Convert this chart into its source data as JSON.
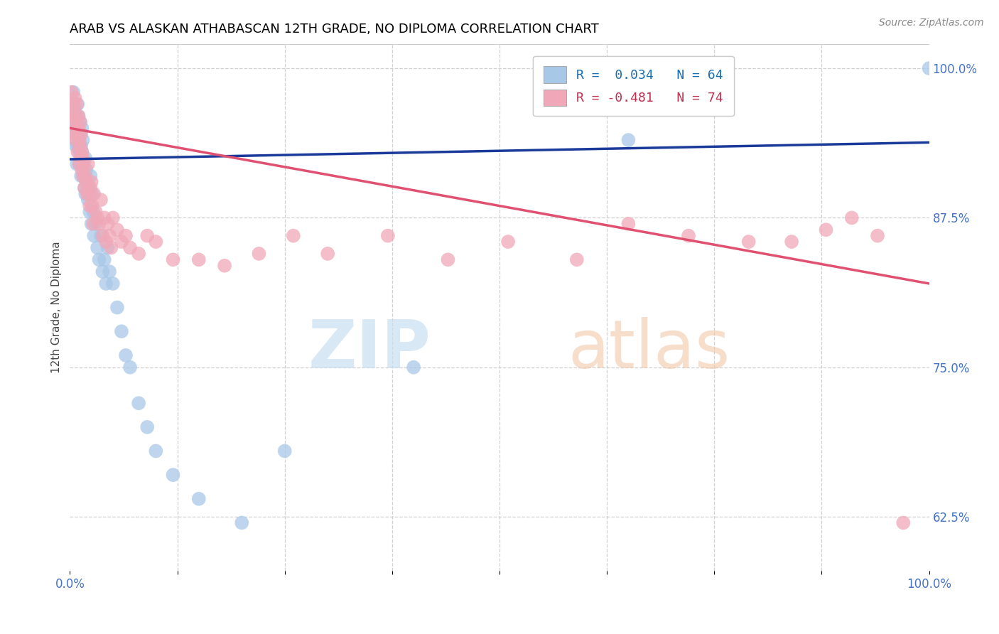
{
  "title": "ARAB VS ALASKAN ATHABASCAN 12TH GRADE, NO DIPLOMA CORRELATION CHART",
  "source": "Source: ZipAtlas.com",
  "ylabel": "12th Grade, No Diploma",
  "arab_color": "#a8c8e8",
  "athabascan_color": "#f0a8b8",
  "arab_line_color": "#1a3a9a",
  "athabascan_line_color": "#e05070",
  "arab_R": 0.034,
  "arab_N": 64,
  "athabascan_R": -0.481,
  "athabascan_N": 74,
  "arab_x": [
    0.002,
    0.003,
    0.004,
    0.004,
    0.005,
    0.005,
    0.006,
    0.006,
    0.007,
    0.007,
    0.008,
    0.008,
    0.009,
    0.009,
    0.01,
    0.01,
    0.011,
    0.011,
    0.012,
    0.012,
    0.013,
    0.013,
    0.014,
    0.014,
    0.015,
    0.015,
    0.016,
    0.017,
    0.018,
    0.018,
    0.019,
    0.02,
    0.021,
    0.022,
    0.023,
    0.024,
    0.025,
    0.026,
    0.027,
    0.028,
    0.03,
    0.032,
    0.034,
    0.036,
    0.038,
    0.04,
    0.042,
    0.044,
    0.046,
    0.05,
    0.055,
    0.06,
    0.065,
    0.07,
    0.08,
    0.09,
    0.1,
    0.12,
    0.15,
    0.2,
    0.25,
    0.4,
    0.65,
    1.0
  ],
  "arab_y": [
    0.96,
    0.97,
    0.945,
    0.98,
    0.965,
    0.95,
    0.955,
    0.94,
    0.935,
    0.96,
    0.945,
    0.92,
    0.97,
    0.935,
    0.96,
    0.94,
    0.93,
    0.92,
    0.945,
    0.955,
    0.935,
    0.91,
    0.95,
    0.93,
    0.94,
    0.92,
    0.91,
    0.9,
    0.925,
    0.895,
    0.915,
    0.905,
    0.89,
    0.9,
    0.88,
    0.91,
    0.87,
    0.895,
    0.88,
    0.86,
    0.87,
    0.85,
    0.84,
    0.86,
    0.83,
    0.84,
    0.82,
    0.85,
    0.83,
    0.82,
    0.8,
    0.78,
    0.76,
    0.75,
    0.72,
    0.7,
    0.68,
    0.66,
    0.64,
    0.62,
    0.68,
    0.75,
    0.94,
    1.0
  ],
  "athabascan_x": [
    0.002,
    0.003,
    0.004,
    0.005,
    0.005,
    0.006,
    0.006,
    0.007,
    0.007,
    0.008,
    0.008,
    0.009,
    0.009,
    0.01,
    0.01,
    0.011,
    0.011,
    0.012,
    0.012,
    0.013,
    0.013,
    0.014,
    0.014,
    0.015,
    0.015,
    0.016,
    0.017,
    0.018,
    0.019,
    0.02,
    0.021,
    0.022,
    0.023,
    0.024,
    0.025,
    0.026,
    0.027,
    0.028,
    0.03,
    0.032,
    0.034,
    0.036,
    0.038,
    0.04,
    0.042,
    0.044,
    0.046,
    0.048,
    0.05,
    0.055,
    0.06,
    0.065,
    0.07,
    0.08,
    0.09,
    0.1,
    0.12,
    0.15,
    0.18,
    0.22,
    0.26,
    0.3,
    0.37,
    0.44,
    0.51,
    0.59,
    0.65,
    0.72,
    0.79,
    0.84,
    0.88,
    0.91,
    0.94,
    0.97
  ],
  "athabascan_y": [
    0.98,
    0.965,
    0.97,
    0.96,
    0.945,
    0.975,
    0.955,
    0.96,
    0.94,
    0.95,
    0.97,
    0.945,
    0.93,
    0.96,
    0.95,
    0.94,
    0.92,
    0.955,
    0.935,
    0.945,
    0.925,
    0.915,
    0.93,
    0.925,
    0.91,
    0.92,
    0.9,
    0.91,
    0.905,
    0.895,
    0.92,
    0.895,
    0.885,
    0.9,
    0.905,
    0.885,
    0.87,
    0.895,
    0.88,
    0.875,
    0.87,
    0.89,
    0.86,
    0.875,
    0.855,
    0.87,
    0.86,
    0.85,
    0.875,
    0.865,
    0.855,
    0.86,
    0.85,
    0.845,
    0.86,
    0.855,
    0.84,
    0.84,
    0.835,
    0.845,
    0.86,
    0.845,
    0.86,
    0.84,
    0.855,
    0.84,
    0.87,
    0.86,
    0.855,
    0.855,
    0.865,
    0.875,
    0.86,
    0.62
  ],
  "arab_line": [
    0.924,
    0.938
  ],
  "athabascan_line": [
    0.95,
    0.82
  ],
  "xlim": [
    0.0,
    1.0
  ],
  "ylim": [
    0.58,
    1.02
  ],
  "yticks": [
    0.625,
    0.75,
    0.875,
    1.0
  ],
  "ytick_labels": [
    "62.5%",
    "75.0%",
    "87.5%",
    "100.0%"
  ],
  "xtick_labels_show": [
    "0.0%",
    "100.0%"
  ]
}
